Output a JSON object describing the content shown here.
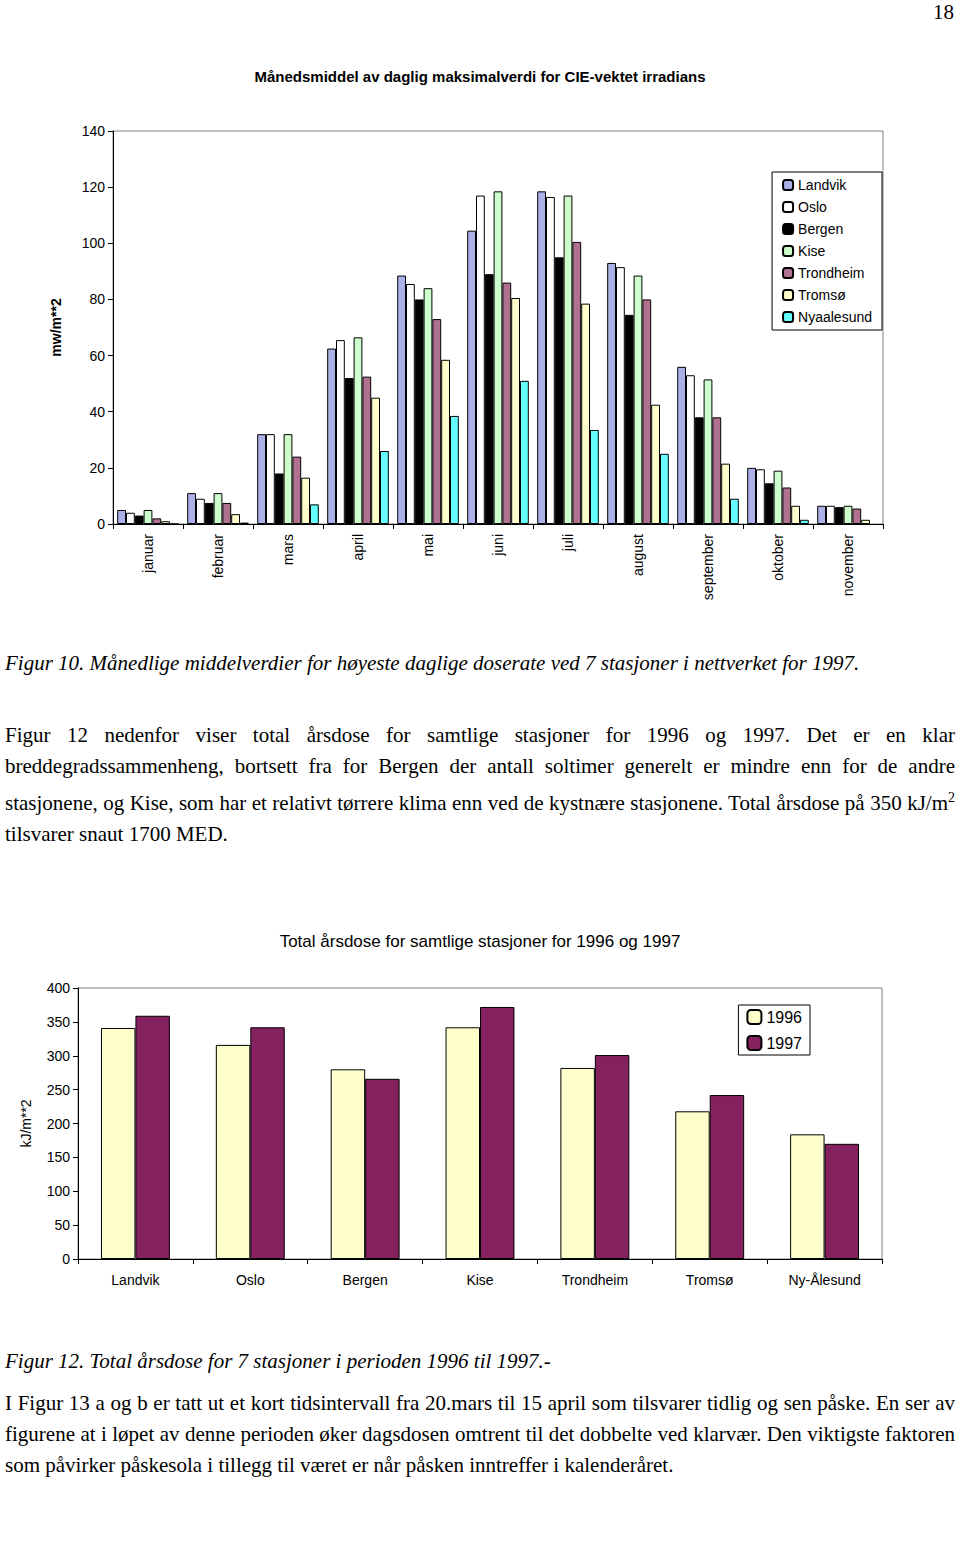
{
  "page_number": "18",
  "chart_data": [
    {
      "type": "bar",
      "title": "Månedsmiddel av daglig maksimalverdi for CIE-vektet irradians",
      "y_label": "mw/m**2",
      "categories": [
        "januar",
        "februar",
        "mars",
        "april",
        "mai",
        "juni",
        "juli",
        "august",
        "september",
        "oktober",
        "november"
      ],
      "series": [
        {
          "name": "Landvik",
          "color": "#aab0e8",
          "values": [
            5,
            11,
            32,
            62.5,
            88.5,
            104.5,
            118.5,
            93,
            56,
            20,
            6.5
          ]
        },
        {
          "name": "Oslo",
          "color": "#ffffff",
          "values": [
            4,
            9,
            32,
            65.5,
            85.5,
            117,
            116.5,
            91.5,
            53,
            19.5,
            6.5
          ]
        },
        {
          "name": "Bergen",
          "color": "#000000",
          "values": [
            3,
            7.5,
            18,
            52,
            80,
            89,
            95,
            74.5,
            38,
            14.5,
            6
          ]
        },
        {
          "name": "Kise",
          "color": "#ccffcc",
          "values": [
            5,
            11,
            32,
            66.5,
            84,
            118.5,
            117,
            88.5,
            51.5,
            19,
            6.5
          ]
        },
        {
          "name": "Trondheim",
          "color": "#b07090",
          "values": [
            2,
            7.5,
            24,
            52.5,
            73,
            86,
            100.5,
            80,
            38,
            13,
            5.5
          ]
        },
        {
          "name": "Tromsø",
          "color": "#ffffcc",
          "values": [
            1,
            3.5,
            16.5,
            45,
            58.5,
            80.5,
            78.5,
            42.5,
            21.5,
            6.5,
            1.5
          ]
        },
        {
          "name": "Nyaalesund",
          "color": "#66ffff",
          "values": [
            0,
            0.5,
            7,
            26,
            38.5,
            51,
            33.5,
            25,
            9,
            1.5,
            null
          ]
        }
      ],
      "ylim": [
        0,
        140
      ],
      "yticks": [
        0,
        20,
        40,
        60,
        80,
        100,
        120,
        140
      ],
      "grid": false,
      "legend": "top-right"
    },
    {
      "type": "bar",
      "title": "Total årsdose for samtlige stasjoner for 1996 og 1997",
      "y_label": "kJ/m**2",
      "categories": [
        "Landvik",
        "Oslo",
        "Bergen",
        "Kise",
        "Trondheim",
        "Tromsø",
        "Ny-Ålesund"
      ],
      "series": [
        {
          "name": "1996",
          "color": "#ffffcc",
          "values": [
            341,
            316,
            280,
            342,
            282,
            218,
            184
          ]
        },
        {
          "name": "1997",
          "color": "#862160",
          "values": [
            359,
            342,
            266,
            372,
            301,
            242,
            170
          ]
        }
      ],
      "ylim": [
        0,
        400
      ],
      "yticks": [
        0,
        50,
        100,
        150,
        200,
        250,
        300,
        350,
        400
      ],
      "grid": false,
      "legend": "top-right"
    }
  ],
  "captions": [
    "Figur 10.  Månedlige middelverdier for høyeste daglige doserate ved 7 stasjoner i nettverket for 1997.",
    "Figur 12. Total årsdose for 7 stasjoner i perioden 1996 til 1997.-"
  ],
  "paragraphs": [
    [
      {
        "text": "Figur 12 nedenfor viser total årsdose for samtlige stasjoner for 1996 og 1997. Det er en klar breddegradssammenheng, bortsett fra for Bergen der antall soltimer generelt er mindre enn for de andre stasjonene, og Kise, som har et relativt tørrere klima enn ved de kystnære stasjonene. Total årsdose på 350 kJ/m"
      },
      {
        "sup": "2"
      },
      {
        "text": " tilsvarer snaut 1700 MED."
      }
    ],
    [
      {
        "text": "I Figur 13 a og b er tatt ut et kort tidsintervall fra 20.mars til 15 april som tilsvarer tidlig og sen påske. En ser av figurene at  i løpet av denne perioden øker dagsdosen omtrent til det dobbelte ved klarvær. Den viktigste faktoren som påvirker påskesola i tillegg til været er når påsken inntreffer i kalenderåret."
      }
    ]
  ]
}
